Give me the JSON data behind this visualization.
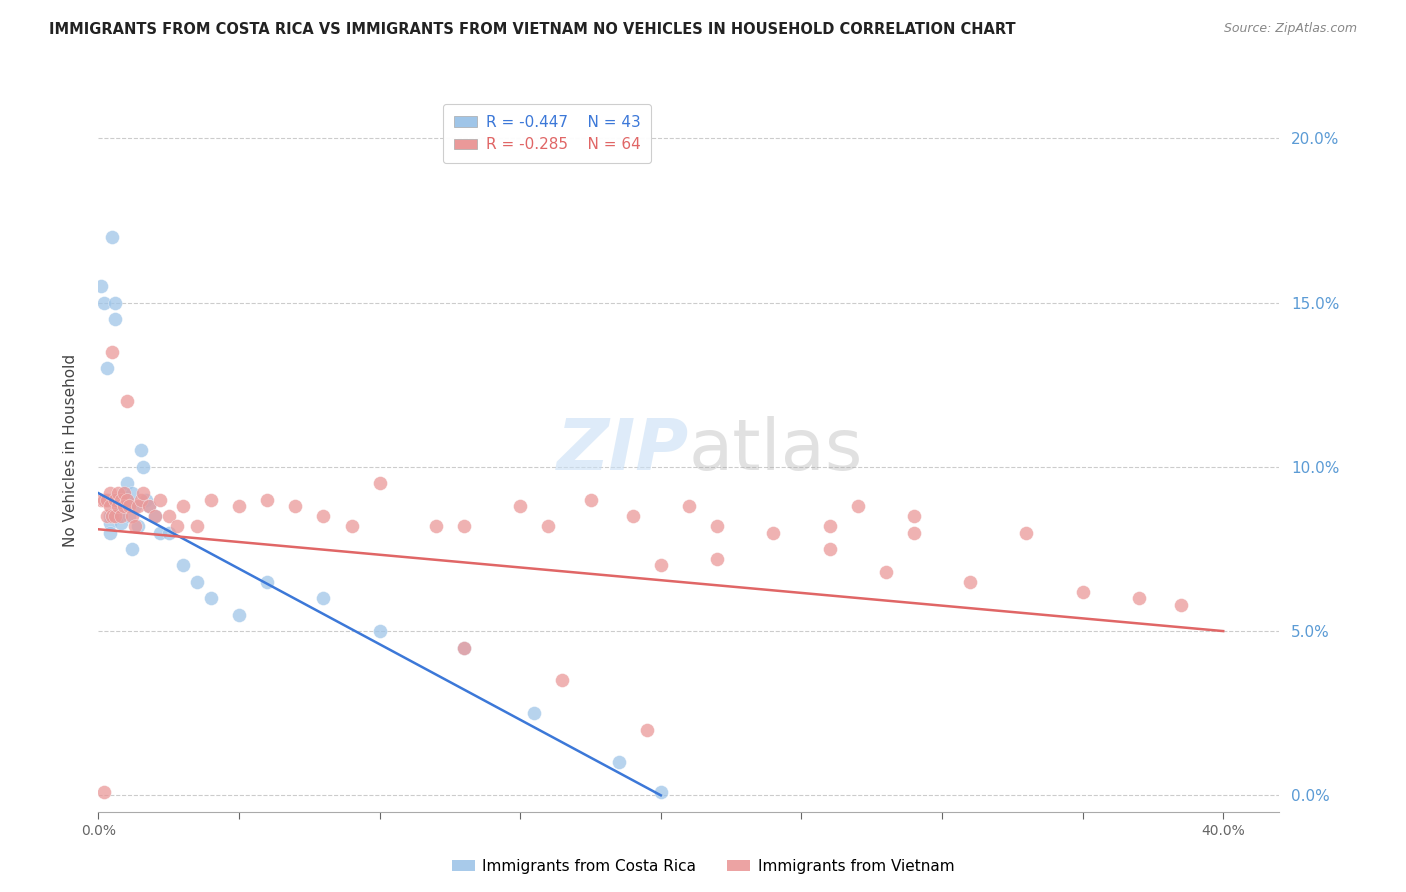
{
  "title": "IMMIGRANTS FROM COSTA RICA VS IMMIGRANTS FROM VIETNAM NO VEHICLES IN HOUSEHOLD CORRELATION CHART",
  "source": "Source: ZipAtlas.com",
  "ylabel": "No Vehicles in Household",
  "xlim": [
    0.0,
    0.42
  ],
  "ylim": [
    -0.005,
    0.215
  ],
  "blue_R": -0.447,
  "blue_N": 43,
  "pink_R": -0.285,
  "pink_N": 64,
  "blue_color": "#9fc5e8",
  "pink_color": "#ea9999",
  "blue_line_color": "#3c78d8",
  "pink_line_color": "#e06666",
  "legend_blue_label": "Immigrants from Costa Rica",
  "legend_pink_label": "Immigrants from Vietnam",
  "blue_line_x0": 0.0,
  "blue_line_y0": 0.092,
  "blue_line_x1": 0.2,
  "blue_line_y1": 0.0,
  "pink_line_x0": 0.0,
  "pink_line_y0": 0.081,
  "pink_line_x1": 0.4,
  "pink_line_y1": 0.05,
  "blue_x": [
    0.001,
    0.002,
    0.003,
    0.003,
    0.004,
    0.004,
    0.004,
    0.005,
    0.005,
    0.006,
    0.006,
    0.007,
    0.007,
    0.008,
    0.008,
    0.009,
    0.009,
    0.01,
    0.01,
    0.011,
    0.011,
    0.012,
    0.012,
    0.013,
    0.014,
    0.015,
    0.016,
    0.017,
    0.018,
    0.02,
    0.022,
    0.025,
    0.03,
    0.035,
    0.04,
    0.05,
    0.06,
    0.08,
    0.1,
    0.13,
    0.155,
    0.185,
    0.2
  ],
  "blue_y": [
    0.155,
    0.15,
    0.13,
    0.09,
    0.085,
    0.083,
    0.08,
    0.17,
    0.09,
    0.15,
    0.145,
    0.09,
    0.085,
    0.088,
    0.083,
    0.092,
    0.088,
    0.095,
    0.09,
    0.088,
    0.085,
    0.092,
    0.075,
    0.088,
    0.082,
    0.105,
    0.1,
    0.09,
    0.088,
    0.085,
    0.08,
    0.08,
    0.07,
    0.065,
    0.06,
    0.055,
    0.065,
    0.06,
    0.05,
    0.045,
    0.025,
    0.01,
    0.001
  ],
  "pink_x": [
    0.001,
    0.002,
    0.003,
    0.003,
    0.004,
    0.004,
    0.005,
    0.005,
    0.006,
    0.006,
    0.007,
    0.007,
    0.008,
    0.008,
    0.009,
    0.009,
    0.01,
    0.01,
    0.011,
    0.012,
    0.013,
    0.014,
    0.015,
    0.016,
    0.018,
    0.02,
    0.022,
    0.025,
    0.028,
    0.03,
    0.035,
    0.04,
    0.05,
    0.06,
    0.07,
    0.08,
    0.09,
    0.1,
    0.12,
    0.13,
    0.15,
    0.16,
    0.175,
    0.19,
    0.21,
    0.22,
    0.24,
    0.26,
    0.27,
    0.28,
    0.29,
    0.31,
    0.33,
    0.35,
    0.37,
    0.385,
    0.2,
    0.22,
    0.26,
    0.29,
    0.13,
    0.165,
    0.195,
    0.002
  ],
  "pink_y": [
    0.09,
    0.09,
    0.09,
    0.085,
    0.092,
    0.088,
    0.135,
    0.085,
    0.09,
    0.085,
    0.092,
    0.088,
    0.09,
    0.085,
    0.092,
    0.088,
    0.09,
    0.12,
    0.088,
    0.085,
    0.082,
    0.088,
    0.09,
    0.092,
    0.088,
    0.085,
    0.09,
    0.085,
    0.082,
    0.088,
    0.082,
    0.09,
    0.088,
    0.09,
    0.088,
    0.085,
    0.082,
    0.095,
    0.082,
    0.082,
    0.088,
    0.082,
    0.09,
    0.085,
    0.088,
    0.082,
    0.08,
    0.082,
    0.088,
    0.068,
    0.085,
    0.065,
    0.08,
    0.062,
    0.06,
    0.058,
    0.07,
    0.072,
    0.075,
    0.08,
    0.045,
    0.035,
    0.02,
    0.001
  ]
}
